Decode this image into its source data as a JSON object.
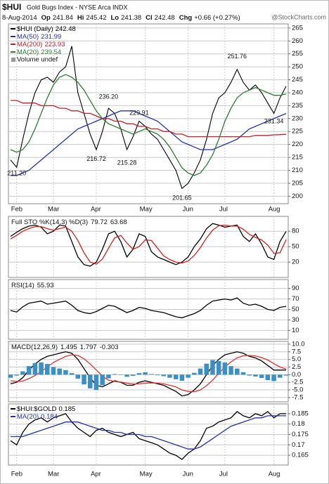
{
  "header": {
    "symbol": "$HUI",
    "name": "Gold Bugs Index - NYSE Arca INDX",
    "date": "8-Aug-2014",
    "quote": [
      {
        "label": "Op",
        "value": 241.84
      },
      {
        "label": "Hi",
        "value": 245.42
      },
      {
        "label": "Lo",
        "value": 241.38
      },
      {
        "label": "Cl",
        "value": 242.48
      },
      {
        "label": "Chg",
        "value": "+0.66 (+0.27%)"
      }
    ],
    "watermark": "@StockCharts.com"
  },
  "chart_data": [
    {
      "type": "line",
      "categories": [
        null,
        "Feb",
        null,
        null,
        null,
        null,
        null,
        "Mar",
        null,
        null,
        null,
        null,
        null,
        null,
        "Apr",
        null,
        null,
        null,
        null,
        null,
        null,
        null,
        "May",
        null,
        null,
        null,
        null,
        null,
        null,
        "Jun",
        null,
        null,
        null,
        null,
        null,
        "Jul",
        null,
        null,
        null,
        null,
        null,
        null,
        null,
        "Aug",
        null,
        null
      ],
      "ylim": [
        197.1,
        266.6
      ],
      "yticks": [
        200,
        205,
        210,
        215,
        220,
        225,
        230,
        235,
        240,
        245,
        250,
        255,
        260,
        265
      ],
      "grid": true,
      "series": [
        {
          "name": "$HUI (Daily)",
          "color": "#000000",
          "values": [
            214,
            211.2,
            222,
            232,
            240,
            245,
            246,
            244,
            248,
            250,
            258,
            240,
            232,
            224,
            218,
            225,
            234,
            232,
            226,
            218,
            223,
            229,
            227,
            224,
            222,
            218,
            214,
            210,
            203,
            205,
            209,
            214,
            222,
            232,
            238,
            240,
            244,
            249,
            244,
            241,
            243,
            240,
            236,
            232,
            238,
            242.48
          ]
        },
        {
          "name": "MA(50)",
          "color": "#2233aa",
          "values": [
            208,
            208,
            209,
            210,
            212,
            214,
            216,
            218,
            220,
            222,
            224,
            226,
            227,
            228,
            229,
            230,
            231,
            232,
            233,
            233,
            233,
            232,
            231,
            230,
            229,
            227,
            225,
            223,
            221,
            220,
            219,
            218,
            218,
            218,
            219,
            220,
            221,
            222,
            224,
            226,
            227,
            228,
            229,
            230,
            231,
            231.99
          ]
        },
        {
          "name": "MA(200)",
          "color": "#c0202a",
          "values": [
            237,
            237,
            236,
            236,
            236,
            235,
            235,
            235,
            234,
            234,
            233,
            233,
            232,
            232,
            231,
            230,
            230,
            229,
            229,
            228,
            228,
            227,
            227,
            226,
            226,
            225,
            225,
            224,
            224,
            223,
            223,
            223,
            223,
            223,
            223,
            223,
            223,
            223,
            223,
            223,
            223.5,
            223.5,
            223.5,
            223.7,
            223.8,
            223.93
          ]
        },
        {
          "name": "MA(20)",
          "color": "#2e7d32",
          "values": [
            218,
            217,
            218,
            221,
            226,
            232,
            238,
            243,
            246,
            247,
            246,
            244,
            241,
            237,
            233,
            230,
            228,
            227,
            226,
            225,
            224,
            225,
            226,
            225,
            224,
            222,
            219,
            215,
            211,
            209,
            208,
            209,
            212,
            216,
            222,
            229,
            234,
            238,
            240,
            241,
            242,
            241,
            240,
            239,
            239,
            239.54
          ]
        }
      ],
      "legend_note": "Volume undef",
      "annotations": [
        {
          "x": 1,
          "value": 211.2,
          "label": "211.20"
        },
        {
          "x": 14,
          "value": 216.72,
          "label": "216.72"
        },
        {
          "x": 16,
          "value": 236.2,
          "label": "236.20"
        },
        {
          "x": 21,
          "value": 229.91,
          "label": "229.91"
        },
        {
          "x": 19,
          "value": 215.28,
          "label": "215.28"
        },
        {
          "x": 28,
          "value": 201.65,
          "label": "201.65"
        },
        {
          "x": 37,
          "value": 251.76,
          "label": "251.76"
        },
        {
          "x": 43,
          "value": 231.34,
          "label": "231.34"
        }
      ]
    },
    {
      "type": "line",
      "title": "Full STO %K(14,3) %D(3)",
      "ylim": [
        -10,
        109
      ],
      "yticks": [
        20,
        50,
        80
      ],
      "grid": true,
      "series": [
        {
          "color": "#000000",
          "values": [
            70,
            78,
            85,
            90,
            92,
            88,
            75,
            80,
            92,
            90,
            60,
            30,
            15,
            12,
            20,
            45,
            75,
            80,
            60,
            30,
            45,
            75,
            70,
            40,
            30,
            25,
            20,
            15,
            20,
            30,
            50,
            65,
            85,
            95,
            92,
            88,
            90,
            92,
            70,
            60,
            75,
            55,
            30,
            25,
            60,
            79.72
          ]
        },
        {
          "color": "#d42020",
          "values": [
            65,
            72,
            80,
            85,
            89,
            89,
            85,
            82,
            85,
            88,
            80,
            62,
            38,
            20,
            16,
            26,
            47,
            67,
            72,
            57,
            45,
            50,
            63,
            62,
            47,
            32,
            25,
            20,
            18,
            22,
            33,
            48,
            67,
            82,
            91,
            92,
            90,
            90,
            84,
            74,
            68,
            63,
            53,
            37,
            38,
            63.68
          ]
        }
      ]
    },
    {
      "type": "line",
      "title": "RSI(14)",
      "ylim": [
        -7,
        107
      ],
      "yticks": [
        10,
        30,
        50,
        70,
        90
      ],
      "grid": true,
      "series": [
        {
          "color": "#000000",
          "values": [
            48,
            45,
            55,
            62,
            64,
            66,
            60,
            62,
            64,
            66,
            58,
            48,
            44,
            42,
            46,
            52,
            58,
            56,
            50,
            44,
            48,
            54,
            52,
            48,
            46,
            44,
            40,
            36,
            34,
            38,
            42,
            48,
            58,
            66,
            68,
            70,
            68,
            72,
            62,
            58,
            60,
            56,
            50,
            48,
            54,
            55.93
          ]
        }
      ]
    },
    {
      "type": "line",
      "title": "MACD(12,26,9)",
      "ylim": [
        -8.9,
        10.9
      ],
      "yticks": [
        {
          "value": 10,
          "label": "10.0"
        },
        7.5,
        {
          "value": 5,
          "label": "5.0"
        },
        2.5,
        {
          "value": 0,
          "label": "0.0"
        },
        -2.5,
        {
          "value": -5,
          "label": "-5.0"
        },
        -7.5
      ],
      "grid": true,
      "series": [
        {
          "color": "#000000",
          "values": [
            -3,
            -2.5,
            -1,
            1.5,
            3.5,
            5,
            6,
            6.5,
            7,
            7.5,
            7,
            5,
            2,
            -1,
            -3.5,
            -4,
            -3,
            -2,
            -2.5,
            -3.5,
            -3.5,
            -2.5,
            -2,
            -2.5,
            -3,
            -3.5,
            -4.5,
            -5.5,
            -7,
            -6.5,
            -5,
            -3,
            0,
            3,
            5,
            6.5,
            7,
            7.5,
            7,
            6,
            5.5,
            4.5,
            3,
            1.5,
            1.5,
            1.495
          ]
        },
        {
          "color": "#e03030",
          "values": [
            -2,
            -2.2,
            -2.1,
            -1.3,
            -0.3,
            1,
            2.5,
            4,
            5,
            6,
            6.5,
            6.3,
            5.2,
            3.5,
            1.5,
            -0.5,
            -1.8,
            -2.2,
            -2.4,
            -2.8,
            -3.1,
            -3,
            -2.8,
            -2.7,
            -2.8,
            -3,
            -3.5,
            -4,
            -5,
            -5.5,
            -5.6,
            -5,
            -3.6,
            -1.8,
            0.5,
            2.5,
            4.2,
            5.5,
            6.2,
            6.3,
            6.1,
            5.6,
            4.8,
            3.6,
            2.5,
            1.797
          ]
        },
        {
          "color": "#3a8fc4",
          "style": "bar",
          "values": [
            -1,
            -0.3,
            1.1,
            2.8,
            3.8,
            4,
            3.5,
            2.5,
            2,
            1.5,
            0.5,
            -1.3,
            -3.2,
            -4.5,
            -5,
            -3.5,
            -1.2,
            0.2,
            -0.1,
            -0.7,
            -0.4,
            0.5,
            0.8,
            0.2,
            -0.2,
            -0.5,
            -1,
            -1.5,
            -2,
            -1,
            0.6,
            2,
            3.6,
            4.8,
            4.5,
            4,
            2.8,
            2,
            0.8,
            -0.3,
            -0.6,
            -1.1,
            -1.8,
            -2.1,
            -1,
            -0.303
          ]
        }
      ]
    },
    {
      "type": "line",
      "ylim": [
        0.1603,
        0.1897
      ],
      "yticks": [
        0.165,
        0.17,
        0.175,
        0.18,
        0.185
      ],
      "grid": true,
      "series": [
        {
          "name": "$HUI:$GOLD",
          "color": "#000000",
          "values": [
            0.172,
            0.17,
            0.176,
            0.18,
            0.182,
            0.183,
            0.181,
            0.183,
            0.184,
            0.185,
            0.181,
            0.178,
            0.176,
            0.174,
            0.177,
            0.178,
            0.176,
            0.175,
            0.174,
            0.175,
            0.176,
            0.173,
            0.172,
            0.171,
            0.17,
            0.168,
            0.166,
            0.165,
            0.163,
            0.166,
            0.168,
            0.172,
            0.178,
            0.179,
            0.181,
            0.182,
            0.183,
            0.186,
            0.184,
            0.183,
            0.185,
            0.184,
            0.186,
            0.183,
            0.185,
            0.185
          ]
        },
        {
          "name": "MA(20)",
          "color": "#2233aa",
          "values": [
            0.174,
            0.174,
            0.174,
            0.175,
            0.176,
            0.177,
            0.178,
            0.179,
            0.18,
            0.181,
            0.181,
            0.181,
            0.18,
            0.179,
            0.178,
            0.177,
            0.177,
            0.176,
            0.176,
            0.175,
            0.175,
            0.175,
            0.174,
            0.174,
            0.173,
            0.172,
            0.171,
            0.17,
            0.169,
            0.168,
            0.168,
            0.169,
            0.171,
            0.173,
            0.175,
            0.177,
            0.179,
            0.18,
            0.181,
            0.182,
            0.183,
            0.183,
            0.184,
            0.184,
            0.184,
            0.184
          ]
        }
      ]
    }
  ]
}
